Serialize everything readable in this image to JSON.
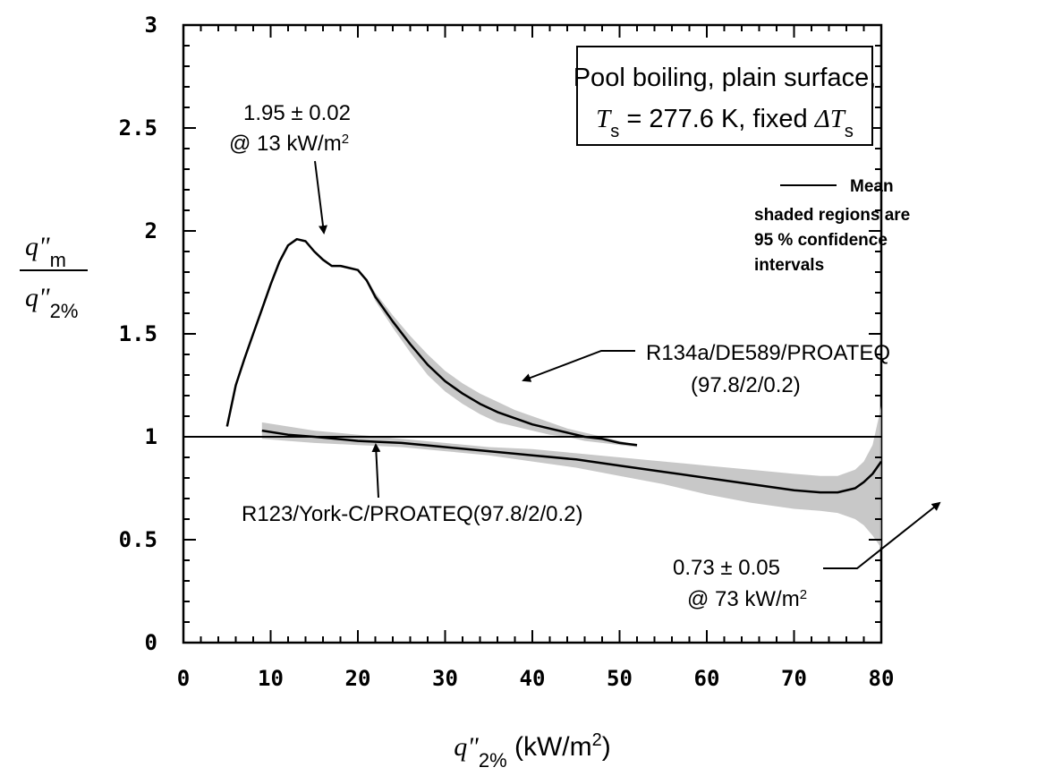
{
  "chart_data": {
    "type": "line",
    "title": "",
    "xlim": [
      0,
      80
    ],
    "ylim": [
      0,
      3
    ],
    "x_ticks": [
      "0",
      "10",
      "20",
      "30",
      "40",
      "50",
      "60",
      "70",
      "80"
    ],
    "y_ticks": [
      "0",
      "0.5",
      "1",
      "1.5",
      "2",
      "2.5",
      "3"
    ],
    "grid": false,
    "x_axis_label": {
      "symbol": "q\"",
      "sub": "2%",
      "unit_open": " (kW/m",
      "unit_sup": "2",
      "unit_close": ")"
    },
    "y_axis_label": {
      "num": "q\"",
      "num_sub": "m",
      "den": "q\"",
      "den_sub": "2%"
    },
    "info_box": {
      "line1": "Pool boiling, plain surface,",
      "line2_sym": "T",
      "line2_sub": "s",
      "line2_mid": " = 277.6 K, fixed ",
      "line2_delta": "ΔT",
      "line2_sub2": "s"
    },
    "legend": {
      "mean": "Mean",
      "note_lines": [
        "shaded regions are",
        "95 % confidence",
        "intervals"
      ]
    },
    "annotations": {
      "peak_line1": "1.95 ± 0.02",
      "peak_line2_pre": "@ 13 kW/m",
      "peak_line2_sup": "2",
      "r134a_line1": "R134a/DE589/PROATEQ",
      "r134a_line2": "(97.8/2/0.2)",
      "r123_label": "R123/York-C/PROATEQ(97.8/2/0.2)",
      "min_line1": "0.73 ± 0.05",
      "min_line2_pre": "@ 73 kW/m",
      "min_line2_sup": "2"
    },
    "reference_line": {
      "y": 1
    },
    "series": [
      {
        "name": "R134a/DE589/PROATEQ (97.8/2/0.2)",
        "x": [
          5,
          6,
          7,
          8,
          9,
          10,
          11,
          12,
          13,
          14,
          15,
          16,
          17,
          18,
          19,
          20,
          21,
          22,
          24,
          26,
          28,
          30,
          32,
          34,
          36,
          38,
          40,
          42,
          44,
          46,
          48,
          50,
          52
        ],
        "y": [
          1.05,
          1.25,
          1.38,
          1.5,
          1.62,
          1.74,
          1.85,
          1.93,
          1.96,
          1.95,
          1.9,
          1.86,
          1.83,
          1.83,
          1.82,
          1.81,
          1.76,
          1.68,
          1.56,
          1.45,
          1.35,
          1.27,
          1.21,
          1.16,
          1.12,
          1.09,
          1.06,
          1.04,
          1.02,
          1.0,
          0.99,
          0.97,
          0.96
        ],
        "band_upper": [
          1.05,
          1.25,
          1.38,
          1.5,
          1.62,
          1.74,
          1.85,
          1.93,
          1.96,
          1.95,
          1.9,
          1.86,
          1.83,
          1.83,
          1.82,
          1.81,
          1.77,
          1.7,
          1.59,
          1.49,
          1.4,
          1.32,
          1.26,
          1.21,
          1.17,
          1.13,
          1.1,
          1.07,
          1.04,
          1.02,
          1.0,
          0.98,
          0.96
        ],
        "band_lower": [
          1.05,
          1.25,
          1.38,
          1.5,
          1.62,
          1.74,
          1.85,
          1.93,
          1.96,
          1.95,
          1.9,
          1.86,
          1.83,
          1.83,
          1.82,
          1.81,
          1.75,
          1.66,
          1.53,
          1.41,
          1.3,
          1.22,
          1.16,
          1.11,
          1.07,
          1.05,
          1.03,
          1.01,
          1.0,
          0.98,
          0.97,
          0.96,
          0.95
        ]
      },
      {
        "name": "R123/York-C/PROATEQ(97.8/2/0.2)",
        "x": [
          9,
          12,
          15,
          20,
          25,
          30,
          35,
          40,
          45,
          50,
          55,
          60,
          65,
          70,
          73,
          75,
          77,
          78,
          79,
          80
        ],
        "y": [
          1.03,
          1.01,
          1.0,
          0.98,
          0.97,
          0.95,
          0.93,
          0.91,
          0.89,
          0.86,
          0.83,
          0.8,
          0.77,
          0.74,
          0.73,
          0.73,
          0.75,
          0.78,
          0.82,
          0.88
        ],
        "band_upper": [
          1.07,
          1.05,
          1.03,
          1.01,
          0.99,
          0.97,
          0.95,
          0.94,
          0.92,
          0.9,
          0.88,
          0.86,
          0.84,
          0.82,
          0.81,
          0.81,
          0.84,
          0.88,
          0.96,
          1.15
        ],
        "band_lower": [
          0.99,
          0.98,
          0.97,
          0.96,
          0.95,
          0.93,
          0.91,
          0.88,
          0.85,
          0.81,
          0.77,
          0.72,
          0.68,
          0.65,
          0.64,
          0.63,
          0.6,
          0.57,
          0.52,
          0.46
        ]
      }
    ]
  }
}
